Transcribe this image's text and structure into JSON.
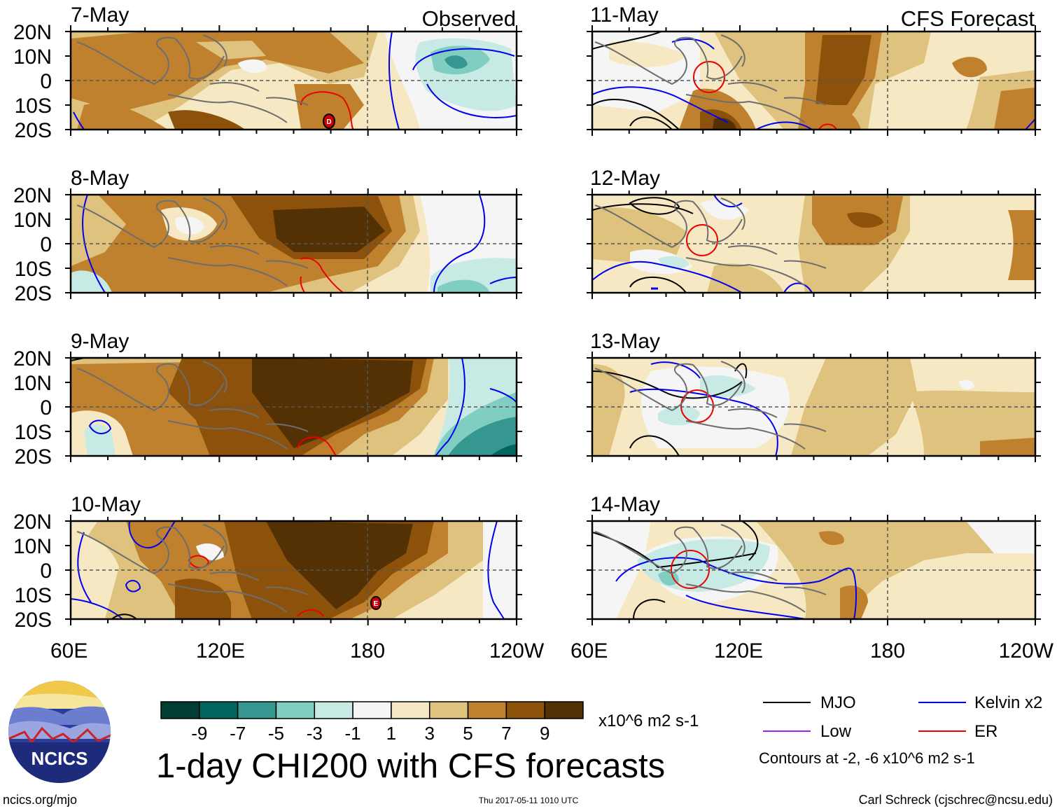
{
  "headers": {
    "observed": "Observed",
    "forecast": "CFS Forecast"
  },
  "panels": [
    {
      "date": "7-May"
    },
    {
      "date": "8-May"
    },
    {
      "date": "9-May"
    },
    {
      "date": "10-May"
    },
    {
      "date": "11-May"
    },
    {
      "date": "12-May"
    },
    {
      "date": "13-May"
    },
    {
      "date": "14-May"
    }
  ],
  "lat_labels": [
    "20N",
    "10N",
    "0",
    "10S",
    "20S"
  ],
  "lon_labels": [
    "60E",
    "120E",
    "180",
    "120W"
  ],
  "colorbar": {
    "colors": [
      "#003d33",
      "#00665e",
      "#35978f",
      "#80cdc1",
      "#c7eae5",
      "#f5f5f5",
      "#f6e8c3",
      "#dfc27d",
      "#bf812d",
      "#8c510a",
      "#543005"
    ],
    "tick_labels": [
      "-9",
      "-7",
      "-5",
      "-3",
      "-1",
      "1",
      "3",
      "5",
      "7",
      "9"
    ],
    "units": "x10^6 m2 s-1"
  },
  "title": "1-day CHI200 with CFS forecasts",
  "legend": {
    "items": [
      {
        "label": "MJO",
        "color": "#000000"
      },
      {
        "label": "Kelvin x2",
        "color": "#0000ee"
      },
      {
        "label": "Low",
        "color": "#a020f0"
      },
      {
        "label": "ER",
        "color": "#ee0000"
      }
    ],
    "note": "Contours at -2, -6 x10^6 m2 s-1"
  },
  "logo_text": "NCICS",
  "footer": {
    "site": "ncics.org/mjo",
    "timestamp": "Thu 2017-05-11 1010 UTC",
    "credit": "Carl Schreck (cjschrec@ncsu.edu)"
  },
  "markers": {
    "d": "D",
    "e": "E"
  }
}
